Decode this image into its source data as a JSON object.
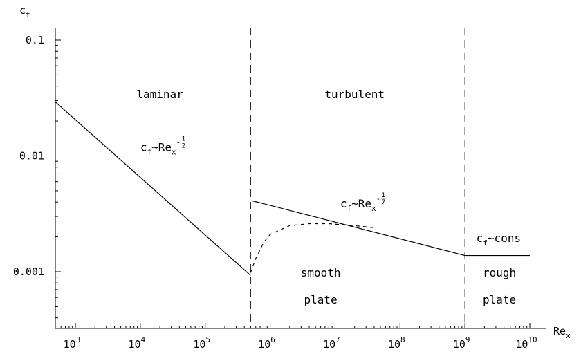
{
  "chart_data": {
    "type": "line",
    "title": "",
    "xlabel": "Re",
    "xlabel_sub": "x",
    "ylabel": "c",
    "ylabel_sub": "f",
    "xscale": "log",
    "yscale": "log",
    "xlim": [
      500,
      10000000000
    ],
    "ylim": [
      0.0002,
      0.16
    ],
    "grid": false,
    "x_ticks": [
      {
        "base": "10",
        "exp": "3",
        "value": 1000
      },
      {
        "base": "10",
        "exp": "4",
        "value": 10000
      },
      {
        "base": "10",
        "exp": "5",
        "value": 100000
      },
      {
        "base": "10",
        "exp": "6",
        "value": 1000000
      },
      {
        "base": "10",
        "exp": "7",
        "value": 10000000
      },
      {
        "base": "10",
        "exp": "8",
        "value": 100000000
      },
      {
        "base": "10",
        "exp": "9",
        "value": 1000000000
      },
      {
        "base": "10",
        "exp": "10",
        "value": 10000000000
      }
    ],
    "y_ticks": [
      {
        "label": "0.1",
        "value": 0.1
      },
      {
        "label": "0.01",
        "value": 0.01
      },
      {
        "label": "0.001",
        "value": 0.001
      }
    ],
    "series": [
      {
        "style": "solid",
        "x": [
          500,
          500000
        ],
        "y": [
          0.029,
          0.00093
        ]
      },
      {
        "style": "solid",
        "x": [
          530000,
          1000000000
        ],
        "y": [
          0.0041,
          0.00138
        ]
      },
      {
        "style": "solid",
        "x": [
          1000000000,
          10000000000
        ],
        "y": [
          0.00138,
          0.00138
        ]
      },
      {
        "style": "dashed",
        "x": [
          500000,
          600000,
          800000,
          1000000,
          2000000,
          4000000,
          8000000,
          20000000,
          40000000
        ],
        "y": [
          0.00098,
          0.0013,
          0.0018,
          0.0021,
          0.0025,
          0.0026,
          0.0026,
          0.0025,
          0.0024
        ]
      }
    ],
    "vlines": [
      500000,
      1000000000
    ],
    "annotations": [
      {
        "text": "laminar",
        "x": 20000,
        "y": 0.0316
      },
      {
        "text": "turbulent",
        "x": 20000000,
        "y": 0.0316
      },
      {
        "text": "smooth",
        "x": 6000000,
        "y": 0.00091
      },
      {
        "text": "plate",
        "x": 6000000,
        "y": 0.00053
      },
      {
        "text": "rough",
        "x": 3400000000,
        "y": 0.00091
      },
      {
        "text": "plate",
        "x": 3400000000,
        "y": 0.00053
      }
    ],
    "formulas": [
      {
        "c": "c",
        "c_sub": "f",
        "tilde": "~",
        "re": "Re",
        "re_sub": "x",
        "exp_sign": "-",
        "exp_num": "1",
        "exp_den": "2",
        "x": 10000,
        "y": 0.011
      },
      {
        "c": "c",
        "c_sub": "f",
        "tilde": "~",
        "re": "Re",
        "re_sub": "x",
        "exp_sign": "-",
        "exp_num": "1",
        "exp_den": "7",
        "x": 12000000,
        "y": 0.0036
      }
    ],
    "const_formula": {
      "c": "c",
      "c_sub": "f",
      "text": "~cons",
      "x": 1500000000,
      "y": 0.0018
    }
  }
}
